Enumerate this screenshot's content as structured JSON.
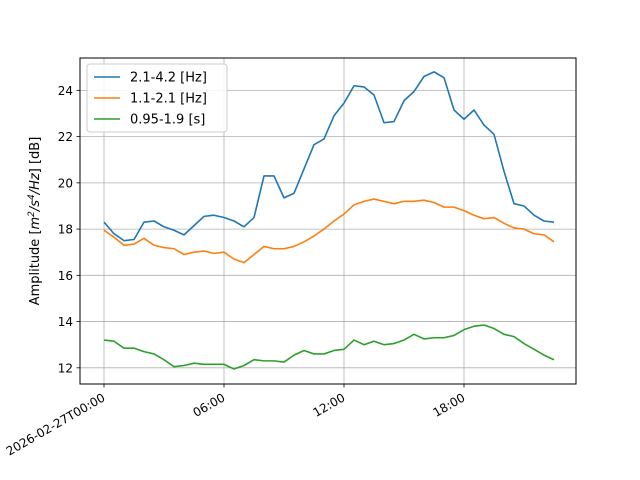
{
  "chart_data": {
    "type": "line",
    "xlabel": "",
    "ylabel": "Amplitude [m²/s⁴/Hz] [dB]",
    "ylabel_parts": {
      "prefix": "Amplitude [",
      "m": "m",
      "sup1": "2",
      "s": "/s",
      "sup2": "4",
      "hz": "/Hz",
      "suffix": "] [dB]"
    },
    "x_unit": "hours since 2026-02-27T00:00",
    "x_range": [
      -1.2,
      23.6
    ],
    "ylim": [
      11.3,
      25.4
    ],
    "grid": true,
    "legend_position": "top-left",
    "x_ticks": [
      {
        "value": 0,
        "label": "2026-02-27T00:00"
      },
      {
        "value": 6,
        "label": "06:00"
      },
      {
        "value": 12,
        "label": "12:00"
      },
      {
        "value": 18,
        "label": "18:00"
      }
    ],
    "y_ticks": [
      12,
      14,
      16,
      18,
      20,
      22,
      24
    ],
    "x": [
      0,
      0.5,
      1,
      1.5,
      2,
      2.5,
      3,
      3.5,
      4,
      4.5,
      5,
      5.5,
      6,
      6.5,
      7,
      7.5,
      8,
      8.5,
      9,
      9.5,
      10,
      10.5,
      11,
      11.5,
      12,
      12.5,
      13,
      13.5,
      14,
      14.5,
      15,
      15.5,
      16,
      16.5,
      17,
      17.5,
      18,
      18.5,
      19,
      19.5,
      20,
      20.5,
      21,
      21.5,
      22,
      22.5
    ],
    "series": [
      {
        "name": "2.1-4.2 [Hz]",
        "color": "#1f77b4",
        "values": [
          18.3,
          17.8,
          17.5,
          17.55,
          18.3,
          18.35,
          18.1,
          17.95,
          17.75,
          18.15,
          18.55,
          18.6,
          18.5,
          18.35,
          18.1,
          18.5,
          20.3,
          20.3,
          19.35,
          19.55,
          20.6,
          21.65,
          21.9,
          22.9,
          23.45,
          24.2,
          24.15,
          23.8,
          22.6,
          22.65,
          23.55,
          23.95,
          24.6,
          24.8,
          24.55,
          23.15,
          22.75,
          23.15,
          22.5,
          22.1,
          20.5,
          19.1,
          19.0,
          18.6,
          18.35,
          18.3
        ]
      },
      {
        "name": "1.1-2.1 [Hz]",
        "color": "#ff7f0e",
        "values": [
          17.95,
          17.65,
          17.3,
          17.35,
          17.6,
          17.3,
          17.2,
          17.15,
          16.9,
          17.0,
          17.05,
          16.95,
          17.0,
          16.7,
          16.55,
          16.9,
          17.25,
          17.15,
          17.15,
          17.25,
          17.45,
          17.7,
          18.0,
          18.35,
          18.65,
          19.05,
          19.2,
          19.3,
          19.2,
          19.1,
          19.2,
          19.2,
          19.25,
          19.15,
          18.95,
          18.95,
          18.8,
          18.6,
          18.45,
          18.5,
          18.25,
          18.05,
          18.0,
          17.8,
          17.75,
          17.45
        ]
      },
      {
        "name": "0.95-1.9 [s]",
        "color": "#2ca02c",
        "values": [
          13.2,
          13.15,
          12.85,
          12.85,
          12.7,
          12.6,
          12.35,
          12.05,
          12.1,
          12.2,
          12.15,
          12.15,
          12.15,
          11.95,
          12.1,
          12.35,
          12.3,
          12.3,
          12.25,
          12.55,
          12.75,
          12.6,
          12.6,
          12.75,
          12.8,
          13.2,
          13.0,
          13.15,
          13.0,
          13.05,
          13.2,
          13.45,
          13.25,
          13.3,
          13.3,
          13.4,
          13.65,
          13.8,
          13.85,
          13.7,
          13.45,
          13.35,
          13.05,
          12.8,
          12.55,
          12.35
        ]
      }
    ]
  }
}
